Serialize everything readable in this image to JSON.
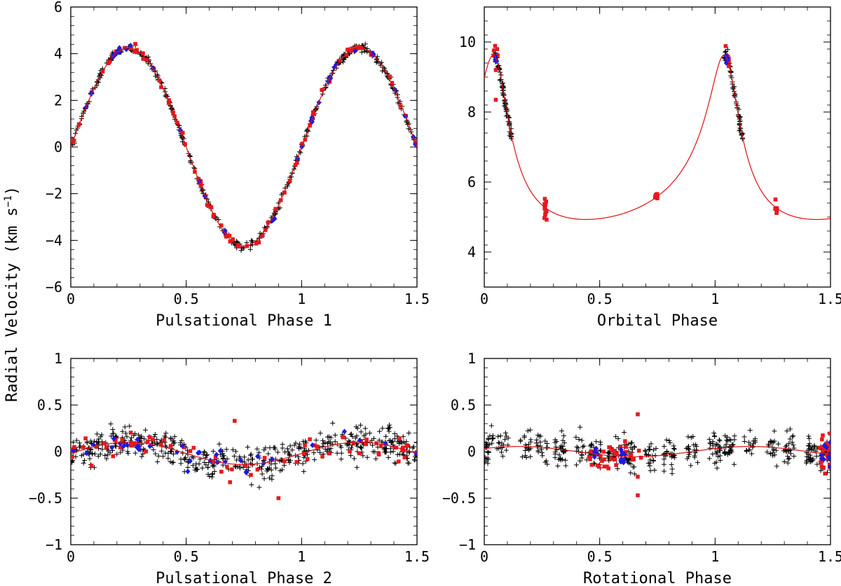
{
  "figure": {
    "ylabel_text": "Radial Velocity (km s",
    "ylabel_sup": "−1",
    "ylabel_close": ")"
  },
  "colors": {
    "black": "#000000",
    "red": "#e8191e",
    "blue": "#1a1ae6",
    "curve": "#e01010"
  },
  "chart_data": [
    {
      "id": "p1",
      "type": "scatter",
      "xlabel": "Pulsational Phase 1",
      "xlim": [
        0,
        1.5
      ],
      "ylim": [
        -6,
        6
      ],
      "xticks": [
        0,
        0.5,
        1,
        1.5
      ],
      "xtick_labels": [
        "0",
        "0.5",
        "1",
        "1.5"
      ],
      "yticks": [
        -6,
        -4,
        -2,
        0,
        2,
        4,
        6
      ],
      "ytick_labels": [
        "−6",
        "−4",
        "−2",
        "0",
        "2",
        "4",
        "6"
      ],
      "model": {
        "kind": "sine",
        "amplitude": 4.25,
        "offset": 0,
        "phase0": 0
      },
      "series": [
        {
          "name": "black",
          "marker": "plus",
          "count": 420,
          "scatter": 0.08
        },
        {
          "name": "red",
          "marker": "square",
          "count": 90,
          "scatter": 0.1
        },
        {
          "name": "blue",
          "marker": "diamond",
          "count": 40,
          "scatter": 0.08
        }
      ]
    },
    {
      "id": "orb",
      "type": "scatter",
      "xlabel": "Orbital Phase",
      "xlim": [
        0,
        1.5
      ],
      "ylim": [
        3,
        11
      ],
      "xticks": [
        0,
        0.5,
        1,
        1.5
      ],
      "xtick_labels": [
        "0",
        "0.5",
        "1",
        "1.5"
      ],
      "yticks": [
        4,
        6,
        8,
        10
      ],
      "ytick_labels": [
        "4",
        "6",
        "8",
        "10"
      ],
      "model": {
        "kind": "keplerian",
        "gamma": 6.1,
        "K": 2.35,
        "e": 0.52,
        "omega_deg": 15,
        "T0": 0.05
      },
      "series": [
        {
          "name": "black",
          "marker": "plus",
          "phases": [
            [
              0.04,
              0.12
            ]
          ],
          "count": 150,
          "scatter": 0.1
        },
        {
          "name": "red",
          "marker": "square",
          "phases": [
            [
              0.04,
              0.06
            ],
            [
              0.26,
              0.27
            ],
            [
              0.74,
              0.75
            ]
          ],
          "count": 40,
          "scatter": 0.15,
          "extra": [
            {
              "x": 0.05,
              "y": 9.2
            },
            {
              "x": 0.05,
              "y": 8.35
            }
          ]
        },
        {
          "name": "blue",
          "marker": "diamond",
          "phases": [
            [
              0.045,
              0.055
            ]
          ],
          "count": 10,
          "scatter": 0.1
        }
      ]
    },
    {
      "id": "p2",
      "type": "scatter",
      "xlabel": "Pulsational Phase 2",
      "xlim": [
        0,
        1.5
      ],
      "ylim": [
        -1,
        1
      ],
      "xticks": [
        0,
        0.5,
        1,
        1.5
      ],
      "xtick_labels": [
        "0",
        "0.5",
        "1",
        "1.5"
      ],
      "yticks": [
        -1,
        -0.5,
        0,
        0.5,
        1
      ],
      "ytick_labels": [
        "−1",
        "−0.5",
        "0",
        "0.5",
        "1"
      ],
      "model": {
        "kind": "sine",
        "amplitude": 0.12,
        "offset": -0.02,
        "phase0": 0
      },
      "series": [
        {
          "name": "black",
          "marker": "plus",
          "count": 520,
          "scatter": 0.09
        },
        {
          "name": "red",
          "marker": "square",
          "count": 70,
          "scatter": 0.07,
          "extra": [
            {
              "x": 0.71,
              "y": 0.33
            },
            {
              "x": 0.9,
              "y": -0.5
            },
            {
              "x": 0.09,
              "y": -0.15
            }
          ]
        },
        {
          "name": "blue",
          "marker": "diamond",
          "count": 35,
          "scatter": 0.05
        }
      ]
    },
    {
      "id": "rot",
      "type": "scatter",
      "xlabel": "Rotational Phase",
      "xlim": [
        0,
        1.5
      ],
      "ylim": [
        -1,
        1
      ],
      "xticks": [
        0,
        0.5,
        1,
        1.5
      ],
      "xtick_labels": [
        "0",
        "0.5",
        "1",
        "1.5"
      ],
      "yticks": [
        -1,
        -0.5,
        0,
        0.5,
        1
      ],
      "ytick_labels": [
        "−1",
        "−0.5",
        "0",
        "0.5",
        "1"
      ],
      "model": {
        "kind": "sine",
        "amplitude": 0.055,
        "offset": 0.0,
        "phase0": -0.1
      },
      "series": [
        {
          "name": "black",
          "marker": "plus",
          "count": 480,
          "scatter": 0.08,
          "clustered": true
        },
        {
          "name": "red",
          "marker": "square",
          "phases": [
            [
              0.45,
              0.68
            ],
            [
              1.45,
              1.5
            ]
          ],
          "count": 60,
          "scatter": 0.09,
          "extra": [
            {
              "x": 0.665,
              "y": 0.4
            },
            {
              "x": 0.665,
              "y": -0.47
            },
            {
              "x": 0.665,
              "y": -0.27
            }
          ]
        },
        {
          "name": "blue",
          "marker": "diamond",
          "phases": [
            [
              0.46,
              0.5
            ],
            [
              0.59,
              0.61
            ],
            [
              1.46,
              1.5
            ]
          ],
          "count": 25,
          "scatter": 0.05
        }
      ]
    }
  ]
}
